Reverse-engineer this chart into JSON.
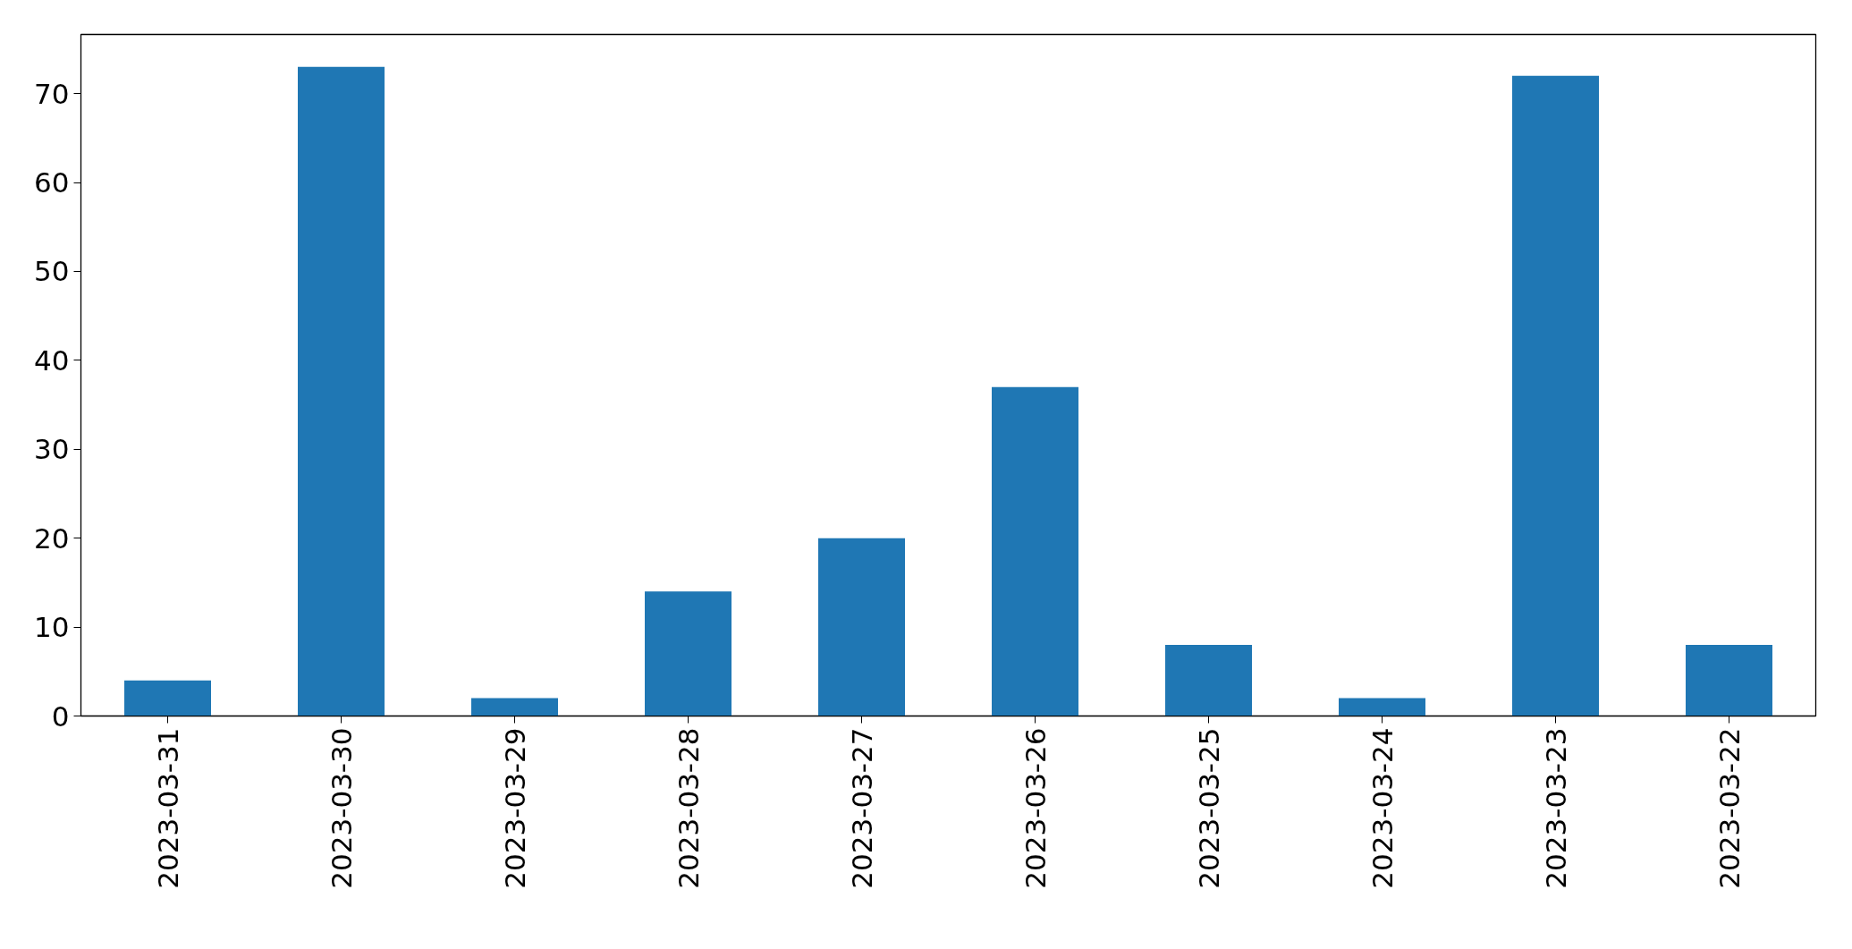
{
  "chart_data": {
    "type": "bar",
    "categories": [
      "2023-03-31",
      "2023-03-30",
      "2023-03-29",
      "2023-03-28",
      "2023-03-27",
      "2023-03-26",
      "2023-03-25",
      "2023-03-24",
      "2023-03-23",
      "2023-03-22"
    ],
    "values": [
      4,
      73,
      2,
      14,
      20,
      37,
      8,
      2,
      72,
      8
    ],
    "color": "#1f77b4",
    "ylim": [
      0,
      76.65
    ],
    "yticks": [
      0,
      10,
      20,
      30,
      40,
      50,
      60,
      70
    ],
    "grid": false
  }
}
